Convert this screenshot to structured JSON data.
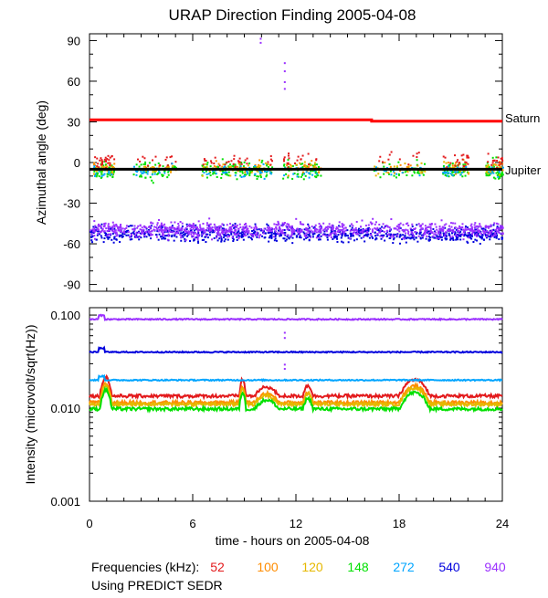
{
  "title": "URAP Direction Finding  2005-04-08",
  "footer": {
    "frequencies_label": "Frequencies (kHz):",
    "source_label": "Using PREDICT SEDR"
  },
  "colors": {
    "52": "#e31a1c",
    "100": "#ff8c00",
    "120": "#e6b800",
    "148": "#00e000",
    "272": "#00a5ff",
    "540": "#0000dd",
    "940": "#9b30ff",
    "saturn": "#ff0000",
    "jupiter": "#000000"
  },
  "chart_data": [
    {
      "type": "scatter",
      "panel": "top",
      "title": "URAP Direction Finding  2005-04-08",
      "ylabel": "Azimuthal angle (deg)",
      "xlabel": "",
      "xlim": [
        0,
        24
      ],
      "ylim": [
        -95,
        95
      ],
      "yticks": [
        "90",
        "60",
        "30",
        "0",
        "-30",
        "-60",
        "-90"
      ],
      "grid": false,
      "annotations": [
        {
          "label": "Saturn",
          "y": 31
        },
        {
          "label": "Jupiter",
          "y": -5
        }
      ],
      "series": [
        {
          "name": "Saturn",
          "type": "line",
          "x": [
            0,
            16.4,
            16.4,
            24
          ],
          "y": [
            31.5,
            31.5,
            30.5,
            30.5
          ]
        },
        {
          "name": "Jupiter",
          "type": "line",
          "x": [
            0,
            24
          ],
          "y": [
            -5,
            -5
          ]
        },
        {
          "name": "52",
          "type": "scatter",
          "description": "scattered points near 0 deg",
          "y_center": 2,
          "y_spread": 10
        },
        {
          "name": "100",
          "type": "scatter",
          "y_center": -3,
          "y_spread": 8
        },
        {
          "name": "120",
          "type": "scatter",
          "y_center": -4,
          "y_spread": 8
        },
        {
          "name": "148",
          "type": "scatter",
          "y_center": -5,
          "y_spread": 12
        },
        {
          "name": "272",
          "type": "scatter",
          "y_center": -6,
          "y_spread": 8
        },
        {
          "name": "540",
          "type": "scatter",
          "y_center": -52,
          "y_spread": 9
        },
        {
          "name": "940",
          "type": "scatter",
          "y_center": -49,
          "y_spread": 9
        }
      ]
    },
    {
      "type": "line",
      "panel": "bottom",
      "ylabel": "Intensity (microvolt/sqrt(Hz))",
      "xlabel": "time - hours on 2005-04-08",
      "xlim": [
        0,
        24
      ],
      "xticks": [
        "0",
        "6",
        "12",
        "18",
        "24"
      ],
      "ylim": [
        0.001,
        0.12
      ],
      "yscale": "log",
      "yticks": [
        "0.100",
        "0.010",
        "0.001"
      ],
      "grid": false,
      "series": [
        {
          "name": "52",
          "level": 0.0135
        },
        {
          "name": "100",
          "level": 0.0115
        },
        {
          "name": "120",
          "level": 0.011
        },
        {
          "name": "148",
          "level": 0.0098
        },
        {
          "name": "272",
          "level": 0.02
        },
        {
          "name": "540",
          "level": 0.04
        },
        {
          "name": "940",
          "level": 0.09
        }
      ]
    }
  ],
  "legend": [
    {
      "label": "52",
      "color_key": "52"
    },
    {
      "label": "100",
      "color_key": "100"
    },
    {
      "label": "120",
      "color_key": "120"
    },
    {
      "label": "148",
      "color_key": "148"
    },
    {
      "label": "272",
      "color_key": "272"
    },
    {
      "label": "540",
      "color_key": "540"
    },
    {
      "label": "940",
      "color_key": "940"
    }
  ]
}
